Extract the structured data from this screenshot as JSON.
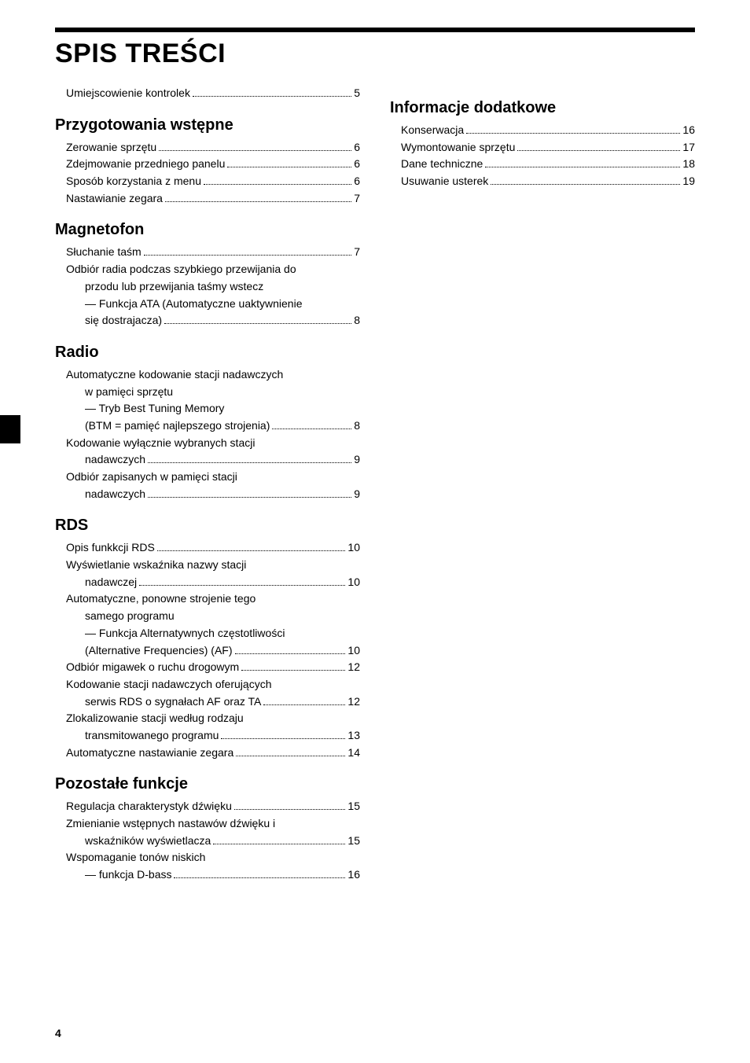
{
  "title": "SPIS TREŚCI",
  "page_number": "4",
  "left": {
    "intro": [
      {
        "label": "Umiejscowienie kontrolek",
        "page": "5"
      }
    ],
    "sections": [
      {
        "heading": "Przygotowania wstępne",
        "items": [
          {
            "label": "Zerowanie sprzętu",
            "page": "6"
          },
          {
            "label": "Zdejmowanie przedniego panelu",
            "page": "6"
          },
          {
            "label": "Sposób korzystania z menu",
            "page": "6"
          },
          {
            "label": "Nastawianie zegara",
            "page": "7"
          }
        ]
      },
      {
        "heading": "Magnetofon",
        "items": [
          {
            "label": "Słuchanie taśm",
            "page": "7"
          },
          {
            "label": "Odbiór radia podczas szybkiego przewijania do",
            "cont": [
              "przodu lub przewijania taśmy wstecz",
              "— Funkcja ATA (Automatyczne uaktywnienie"
            ],
            "tail_label": "się dostrajacza)",
            "page": "8"
          }
        ]
      },
      {
        "heading": "Radio",
        "items": [
          {
            "label": "Automatyczne kodowanie stacji nadawczych",
            "cont": [
              "w pamięci sprzętu",
              "— Tryb Best Tuning Memory"
            ],
            "tail_label": "(BTM = pamięć najlepszego strojenia)",
            "page": "8"
          },
          {
            "label": "Kodowanie wyłącznie wybranych stacji",
            "tail_label": "nadawczych",
            "page": "9"
          },
          {
            "label": "Odbiór zapisanych w pamięci stacji",
            "tail_label": "nadawczych",
            "page": "9"
          }
        ]
      },
      {
        "heading": "RDS",
        "items": [
          {
            "label": "Opis funkkcji RDS",
            "page": "10"
          },
          {
            "label": "Wyświetlanie wskaźnika nazwy stacji",
            "tail_label": "nadawczej",
            "page": "10"
          },
          {
            "label": "Automatyczne, ponowne strojenie tego",
            "cont": [
              "samego programu",
              "— Funkcja Alternatywnych częstotliwości"
            ],
            "tail_label": "(Alternative Frequencies) (AF)",
            "page": "10"
          },
          {
            "label": "Odbiór migawek o ruchu drogowym",
            "page": "12"
          },
          {
            "label": "Kodowanie stacji nadawczych oferujących",
            "tail_label": "serwis RDS o sygnałach AF oraz TA",
            "page": "12"
          },
          {
            "label": "Zlokalizowanie stacji według rodzaju",
            "tail_label": "transmitowanego programu",
            "page": "13"
          },
          {
            "label": "Automatyczne nastawianie zegara",
            "page": "14"
          }
        ]
      },
      {
        "heading": "Pozostałe funkcje",
        "items": [
          {
            "label": "Regulacja charakterystyk dźwięku",
            "page": "15"
          },
          {
            "label": "Zmienianie wstępnych nastawów dźwięku i",
            "tail_label": "wskaźników wyświetlacza",
            "page": "15"
          },
          {
            "label": "Wspomaganie tonów niskich",
            "tail_label": "— funkcja D-bass",
            "page": "16"
          }
        ]
      }
    ]
  },
  "right": {
    "sections": [
      {
        "heading": "Informacje dodatkowe",
        "items": [
          {
            "label": "Konserwacja",
            "page": "16"
          },
          {
            "label": "Wymontowanie sprzętu",
            "page": "17"
          },
          {
            "label": "Dane techniczne",
            "page": "18"
          },
          {
            "label": "Usuwanie usterek",
            "page": "19"
          }
        ]
      }
    ]
  }
}
